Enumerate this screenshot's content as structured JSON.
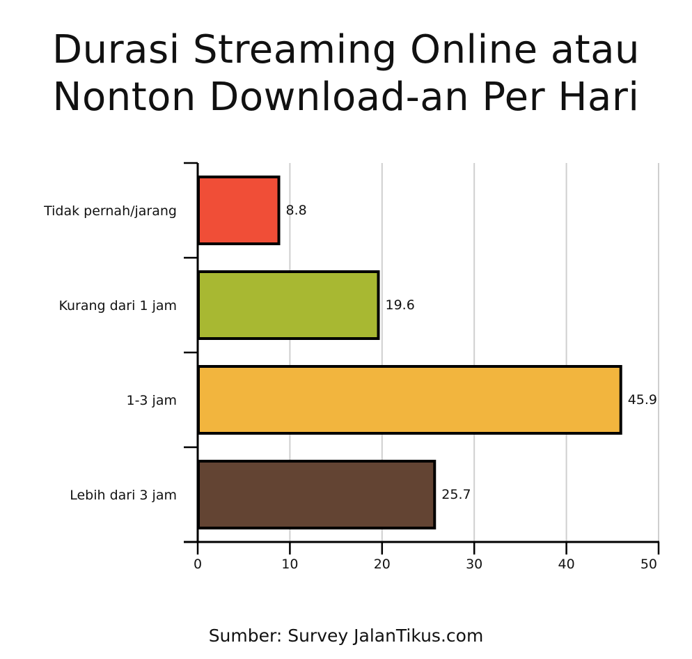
{
  "title_line1": "Durasi Streaming Online atau",
  "title_line2": "Nonton Download-an Per Hari",
  "source": "Sumber: Survey JalanTikus.com",
  "chart_data": {
    "type": "bar",
    "orientation": "horizontal",
    "categories": [
      "Tidak pernah/jarang",
      "Kurang dari 1 jam",
      "1-3 jam",
      "Lebih dari 3 jam"
    ],
    "values": [
      8.8,
      19.6,
      45.9,
      25.7
    ],
    "value_labels": [
      "8.8",
      "19.6",
      "45.9",
      "25.7"
    ],
    "colors": [
      "#f04e37",
      "#a8b832",
      "#f2b53e",
      "#634433"
    ],
    "xlim": [
      0,
      50
    ],
    "xticks": [
      0,
      10,
      20,
      30,
      40,
      50
    ],
    "grid": true
  }
}
